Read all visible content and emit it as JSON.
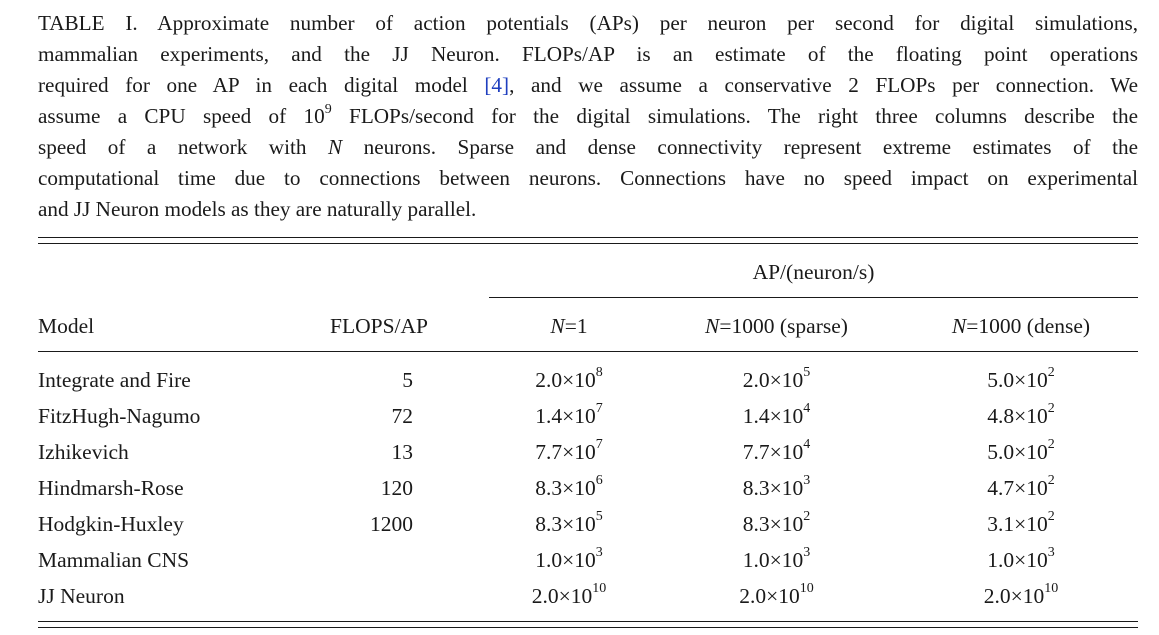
{
  "caption": {
    "label": "TABLE I.",
    "lines": [
      {
        "before": " Approximate number of action potentials (APs) per neuron per second for digital simulations,"
      },
      {
        "before": "mammalian experiments, and the JJ Neuron. FLOPs/AP is an estimate of the floating point operations"
      },
      {
        "before": "required for one AP in each digital model ",
        "ref": "[4]",
        "after": ", and we assume a conservative 2 FLOPs per connection. We"
      },
      {
        "before": "assume a CPU speed of 10",
        "sup": "9",
        "after": " FLOPs/second for the digital simulations. The right three columns describe the"
      },
      {
        "before": "speed of a network with ",
        "italic": "N",
        "after": " neurons. Sparse and dense connectivity represent extreme estimates of the"
      },
      {
        "before": "computational time due to connections between neurons. Connections have no speed impact on experimental"
      },
      {
        "before": "and JJ Neuron models as they are naturally parallel."
      }
    ]
  },
  "table": {
    "group_header": "AP/(neuron/s)",
    "headers": {
      "model": "Model",
      "flops": "FLOPS/AP",
      "n1": {
        "var": "N",
        "eq": "=",
        "value": "1",
        "suffix": ""
      },
      "sparse": {
        "var": "N",
        "eq": "=",
        "value": "1000",
        "suffix": " (sparse)"
      },
      "dense": {
        "var": "N",
        "eq": "=",
        "value": "1000",
        "suffix": " (dense)"
      }
    },
    "rows": [
      {
        "model": "Integrate and Fire",
        "flops": "5",
        "n1": {
          "m": "2.0",
          "e": "8"
        },
        "sparse": {
          "m": "2.0",
          "e": "5"
        },
        "dense": {
          "m": "5.0",
          "e": "2"
        }
      },
      {
        "model": "FitzHugh-Nagumo",
        "flops": "72",
        "n1": {
          "m": "1.4",
          "e": "7"
        },
        "sparse": {
          "m": "1.4",
          "e": "4"
        },
        "dense": {
          "m": "4.8",
          "e": "2"
        }
      },
      {
        "model": "Izhikevich",
        "flops": "13",
        "n1": {
          "m": "7.7",
          "e": "7"
        },
        "sparse": {
          "m": "7.7",
          "e": "4"
        },
        "dense": {
          "m": "5.0",
          "e": "2"
        }
      },
      {
        "model": "Hindmarsh-Rose",
        "flops": "120",
        "n1": {
          "m": "8.3",
          "e": "6"
        },
        "sparse": {
          "m": "8.3",
          "e": "3"
        },
        "dense": {
          "m": "4.7",
          "e": "2"
        }
      },
      {
        "model": "Hodgkin-Huxley",
        "flops": "1200",
        "n1": {
          "m": "8.3",
          "e": "5"
        },
        "sparse": {
          "m": "8.3",
          "e": "2"
        },
        "dense": {
          "m": "3.1",
          "e": "2"
        }
      },
      {
        "model": "Mammalian CNS",
        "flops": "",
        "n1": {
          "m": "1.0",
          "e": "3"
        },
        "sparse": {
          "m": "1.0",
          "e": "3"
        },
        "dense": {
          "m": "1.0",
          "e": "3"
        }
      },
      {
        "model": "JJ Neuron",
        "flops": "",
        "n1": {
          "m": "2.0",
          "e": "10"
        },
        "sparse": {
          "m": "2.0",
          "e": "10"
        },
        "dense": {
          "m": "2.0",
          "e": "10"
        }
      }
    ],
    "times_symbol": "×",
    "base": "10"
  }
}
